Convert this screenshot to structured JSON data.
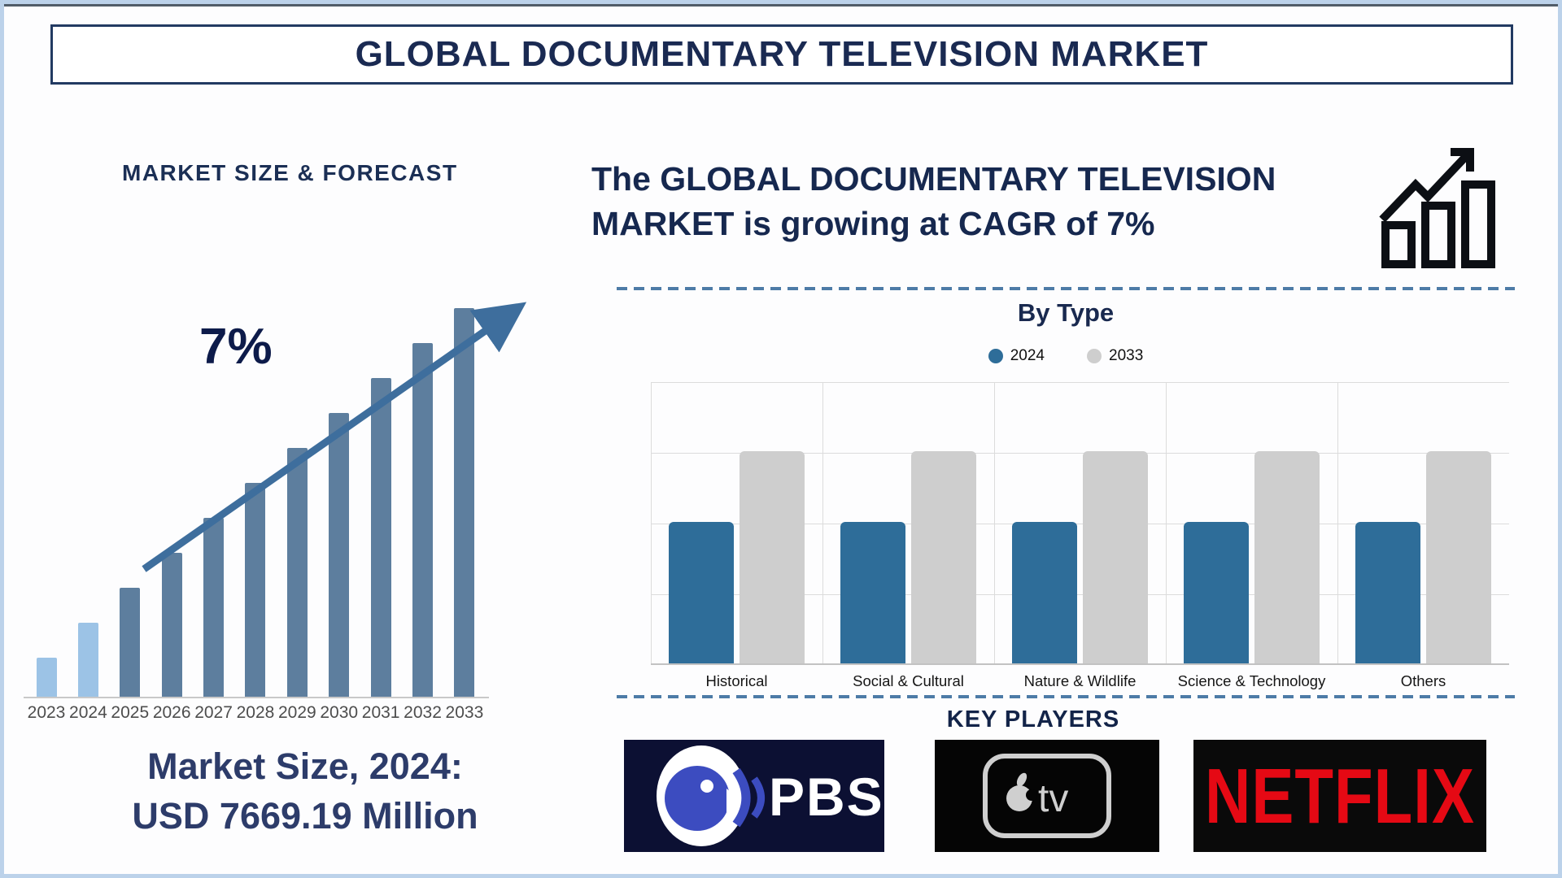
{
  "title": "GLOBAL DOCUMENTARY TELEVISION MARKET",
  "left": {
    "caption_line1": "Market Size, 2024:",
    "caption_line2": "USD 7669.19 Million"
  },
  "right": {
    "headline": "The GLOBAL DOCUMENTARY TELEVISION MARKET is growing at CAGR of 7%"
  },
  "key_players": {
    "title": "KEY PLAYERS",
    "players": [
      {
        "name": "PBS",
        "display": "PBS"
      },
      {
        "name": "Apple TV",
        "display": "tv"
      },
      {
        "name": "Netflix",
        "display": "NETFLIX"
      }
    ]
  },
  "icons": {
    "growth": "growth-chart-icon",
    "arrow": "upward-trend-arrow"
  },
  "colors": {
    "navy_text": "#1a2a52",
    "steel_bar": "#5d7e9e",
    "light_bar": "#9cc3e6",
    "arrow": "#3e6e9d",
    "bytype_blue": "#2e6d99",
    "bytype_gray": "#cecece",
    "dashed_divider": "#4d7ba7",
    "frame": "#bcd2ea",
    "netflix_red": "#e50914",
    "pbs_blue": "#3c4cc0"
  },
  "chart_data": [
    {
      "type": "bar",
      "title": "MARKET SIZE & FORECAST",
      "annotation": "7%",
      "categories": [
        "2023",
        "2024",
        "2025",
        "2026",
        "2027",
        "2028",
        "2029",
        "2030",
        "2031",
        "2032",
        "2033"
      ],
      "values_relative_pct": [
        10,
        19,
        28,
        37,
        46,
        55,
        64,
        73,
        82,
        91,
        100
      ],
      "highlighted_categories": [
        "2023",
        "2024"
      ],
      "bar_color": "#5d7e9e",
      "highlight_color": "#9cc3e6",
      "known_point": {
        "year": "2024",
        "value": "USD 7669.19 Million"
      },
      "cagr_pct": 7,
      "xlabel": "",
      "ylabel": "",
      "y_axis_shown": false,
      "grid": false
    },
    {
      "type": "bar",
      "title": "By Type",
      "categories": [
        "Historical",
        "Social & Cultural",
        "Nature & Wildlife",
        "Science & Technology",
        "Others"
      ],
      "series": [
        {
          "name": "2024",
          "color": "#2e6d99",
          "values": [
            2,
            2,
            2,
            2,
            2
          ]
        },
        {
          "name": "2033",
          "color": "#cecece",
          "values": [
            3,
            3,
            3,
            3,
            3
          ]
        }
      ],
      "ylim": [
        0,
        4
      ],
      "grid": true,
      "legend_position": "top",
      "xlabel": "",
      "ylabel": "",
      "y_axis_shown": false
    }
  ]
}
